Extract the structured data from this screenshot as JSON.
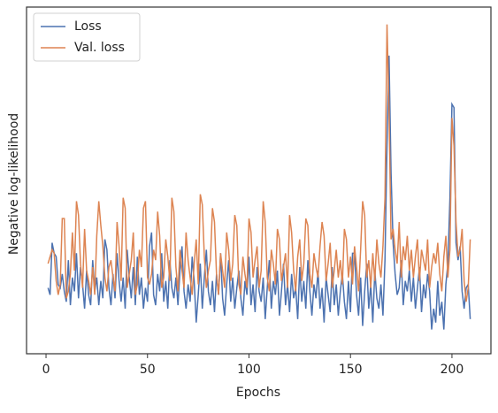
{
  "chart_data": {
    "type": "line",
    "xlabel": "Epochs",
    "ylabel": "Negative log-likelihood",
    "x": [
      1,
      2,
      3,
      4,
      5,
      6,
      7,
      8,
      9,
      10,
      11,
      12,
      13,
      14,
      15,
      16,
      17,
      18,
      19,
      20,
      21,
      22,
      23,
      24,
      25,
      26,
      27,
      28,
      29,
      30,
      31,
      32,
      33,
      34,
      35,
      36,
      37,
      38,
      39,
      40,
      41,
      42,
      43,
      44,
      45,
      46,
      47,
      48,
      49,
      50,
      51,
      52,
      53,
      54,
      55,
      56,
      57,
      58,
      59,
      60,
      61,
      62,
      63,
      64,
      65,
      66,
      67,
      68,
      69,
      70,
      71,
      72,
      73,
      74,
      75,
      76,
      77,
      78,
      79,
      80,
      81,
      82,
      83,
      84,
      85,
      86,
      87,
      88,
      89,
      90,
      91,
      92,
      93,
      94,
      95,
      96,
      97,
      98,
      99,
      100,
      101,
      102,
      103,
      104,
      105,
      106,
      107,
      108,
      109,
      110,
      111,
      112,
      113,
      114,
      115,
      116,
      117,
      118,
      119,
      120,
      121,
      122,
      123,
      124,
      125,
      126,
      127,
      128,
      129,
      130,
      131,
      132,
      133,
      134,
      135,
      136,
      137,
      138,
      139,
      140,
      141,
      142,
      143,
      144,
      145,
      146,
      147,
      148,
      149,
      150,
      151,
      152,
      153,
      154,
      155,
      156,
      157,
      158,
      159,
      160,
      161,
      162,
      163,
      164,
      165,
      166,
      167,
      168,
      169,
      170,
      171,
      172,
      173,
      174,
      175,
      176,
      177,
      178,
      179,
      180,
      181,
      182,
      183,
      184,
      185,
      186,
      187,
      188,
      189,
      190,
      191,
      192,
      193,
      194,
      195,
      196,
      197,
      198,
      199,
      200,
      201,
      202,
      203,
      204,
      205,
      206,
      207,
      208,
      209
    ],
    "series": [
      {
        "name": "Loss",
        "color": "#4c72b0",
        "values": [
          19,
          17,
          32,
          29,
          28,
          20,
          19,
          23,
          18,
          15,
          27,
          14,
          22,
          18,
          29,
          16,
          25,
          20,
          13,
          24,
          17,
          14,
          27,
          18,
          22,
          14,
          21,
          16,
          33,
          30,
          19,
          14,
          23,
          16,
          29,
          21,
          15,
          22,
          13,
          30,
          22,
          16,
          25,
          14,
          28,
          17,
          22,
          13,
          19,
          15,
          31,
          35,
          17,
          14,
          23,
          18,
          29,
          15,
          21,
          13,
          27,
          19,
          16,
          22,
          14,
          24,
          31,
          18,
          13,
          20,
          15,
          28,
          21,
          9,
          17,
          26,
          13,
          22,
          30,
          18,
          14,
          21,
          12,
          23,
          17,
          29,
          16,
          11,
          20,
          27,
          15,
          22,
          13,
          19,
          24,
          16,
          11,
          21,
          17,
          28,
          14,
          20,
          12,
          25,
          18,
          15,
          22,
          10,
          19,
          27,
          13,
          21,
          17,
          24,
          11,
          18,
          26,
          14,
          20,
          12,
          23,
          16,
          19,
          10,
          25,
          15,
          21,
          13,
          27,
          18,
          11,
          20,
          16,
          24,
          13,
          19,
          9,
          22,
          17,
          12,
          25,
          14,
          20,
          11,
          18,
          23,
          15,
          10,
          21,
          12,
          29,
          29,
          17,
          11,
          22,
          8,
          18,
          26,
          13,
          20,
          9,
          24,
          16,
          13,
          20,
          11,
          27,
          60,
          86,
          52,
          32,
          23,
          17,
          19,
          27,
          14,
          21,
          18,
          24,
          15,
          22,
          13,
          19,
          25,
          12,
          20,
          16,
          23,
          18,
          7,
          13,
          9,
          21,
          11,
          15,
          7,
          20,
          26,
          45,
          72,
          71,
          32,
          27,
          31,
          18,
          13,
          19,
          20,
          10
        ]
      },
      {
        "name": "Val. loss",
        "color": "#dd8452",
        "values": [
          26,
          28,
          30,
          29,
          21,
          17,
          20,
          39,
          39,
          16,
          18,
          23,
          35,
          24,
          44,
          40,
          26,
          19,
          36,
          24,
          21,
          17,
          25,
          17,
          34,
          44,
          37,
          31,
          22,
          18,
          25,
          27,
          22,
          18,
          38,
          31,
          21,
          45,
          42,
          19,
          23,
          27,
          35,
          17,
          20,
          30,
          25,
          42,
          44,
          22,
          20,
          23,
          30,
          27,
          41,
          34,
          19,
          22,
          33,
          28,
          21,
          45,
          41,
          25,
          18,
          30,
          24,
          19,
          35,
          27,
          22,
          17,
          26,
          33,
          20,
          46,
          43,
          28,
          19,
          24,
          27,
          42,
          38,
          23,
          17,
          29,
          24,
          19,
          35,
          30,
          21,
          26,
          40,
          37,
          20,
          17,
          28,
          23,
          19,
          39,
          35,
          22,
          27,
          31,
          19,
          24,
          44,
          38,
          22,
          18,
          30,
          26,
          20,
          36,
          33,
          21,
          25,
          29,
          19,
          40,
          35,
          24,
          18,
          28,
          33,
          21,
          26,
          39,
          37,
          23,
          19,
          29,
          25,
          22,
          31,
          38,
          34,
          21,
          26,
          32,
          19,
          24,
          30,
          22,
          27,
          20,
          36,
          33,
          22,
          28,
          20,
          31,
          25,
          18,
          30,
          44,
          40,
          22,
          27,
          19,
          29,
          21,
          33,
          26,
          22,
          31,
          45,
          95,
          70,
          33,
          36,
          30,
          26,
          38,
          22,
          31,
          27,
          34,
          24,
          30,
          22,
          28,
          33,
          21,
          30,
          27,
          24,
          33,
          19,
          25,
          29,
          26,
          32,
          23,
          18,
          28,
          34,
          22,
          30,
          68,
          60,
          38,
          28,
          30,
          36,
          21,
          15,
          19,
          33
        ]
      }
    ],
    "xlim": [
      -9.6,
      219.2
    ],
    "xticks": [
      0,
      50,
      100,
      150,
      200
    ],
    "ylim": [
      0,
      100
    ],
    "legend": "upper left"
  }
}
